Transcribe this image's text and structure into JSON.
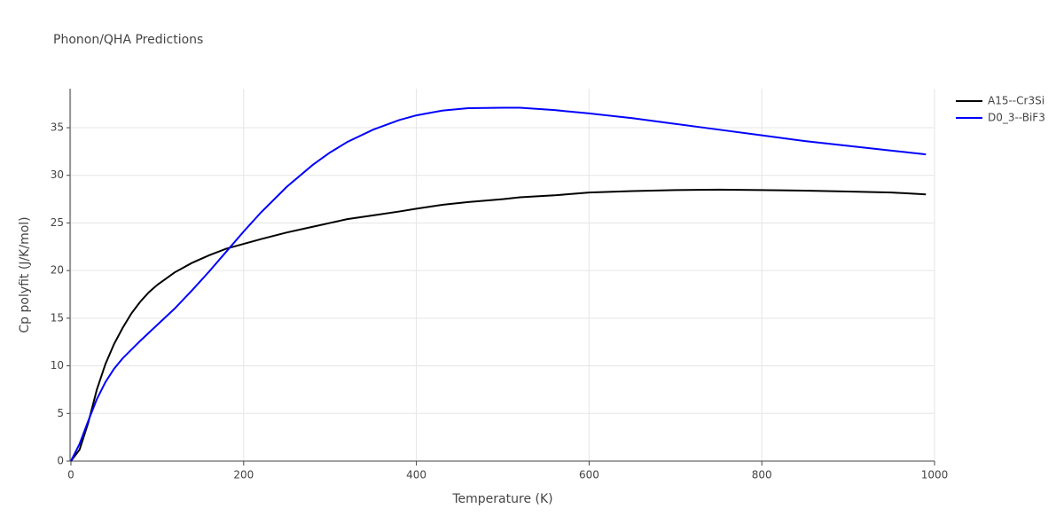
{
  "chart_data": {
    "type": "line",
    "title": "Phonon/QHA Predictions",
    "x_label": "Temperature (K)",
    "y_label": "Cp polyfit (J/K/mol)",
    "x": [
      0,
      10,
      20,
      30,
      40,
      50,
      60,
      70,
      80,
      90,
      100,
      120,
      140,
      160,
      180,
      200,
      220,
      250,
      280,
      300,
      320,
      350,
      380,
      400,
      430,
      460,
      500,
      520,
      560,
      600,
      650,
      700,
      750,
      800,
      850,
      900,
      950,
      990
    ],
    "series": [
      {
        "name": "A15--Cr3Si",
        "color": "#000000",
        "values": [
          0,
          1.2,
          4,
          7.5,
          10.2,
          12.3,
          14,
          15.5,
          16.7,
          17.7,
          18.5,
          19.8,
          20.8,
          21.6,
          22.3,
          22.8,
          23.3,
          24,
          24.6,
          25,
          25.4,
          25.8,
          26.2,
          26.5,
          26.9,
          27.2,
          27.5,
          27.7,
          27.9,
          28.2,
          28.35,
          28.45,
          28.5,
          28.45,
          28.4,
          28.3,
          28.2,
          28.0
        ]
      },
      {
        "name": "D0_3--BiF3",
        "color": "#0000ff",
        "values": [
          0,
          1.8,
          4.2,
          6.5,
          8.3,
          9.7,
          10.8,
          11.7,
          12.6,
          13.45,
          14.3,
          16,
          17.9,
          19.9,
          22,
          24.1,
          26.1,
          28.8,
          31.1,
          32.4,
          33.5,
          34.8,
          35.8,
          36.3,
          36.8,
          37.05,
          37.1,
          37.1,
          36.85,
          36.5,
          36,
          35.4,
          34.8,
          34.2,
          33.6,
          33.1,
          32.6,
          32.2
        ]
      }
    ],
    "xlim": [
      0,
      1000
    ],
    "ylim": [
      0,
      39.1
    ],
    "xticks": [
      0,
      200,
      400,
      600,
      800,
      1000
    ],
    "yticks": [
      0,
      5,
      10,
      15,
      20,
      25,
      30,
      35
    ],
    "grid": true,
    "legend": "top-right"
  }
}
